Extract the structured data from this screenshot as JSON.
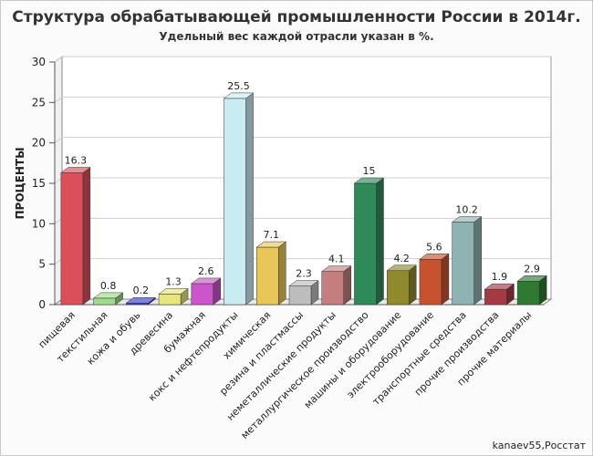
{
  "chart_data": {
    "type": "bar",
    "title": "Структура обрабатывающей промышленности России в 2014г.",
    "subtitle": "Удельный вес каждой отрасли указан в %.",
    "xlabel": "",
    "ylabel": "ПРОЦЕНТЫ",
    "ylim": [
      0,
      30
    ],
    "yticks": [
      0,
      5,
      10,
      15,
      20,
      25,
      30
    ],
    "grid": true,
    "credit": "kanaev55,Росстат",
    "categories": [
      "пищевая",
      "текстильная",
      "кожа и обувь",
      "древесина",
      "бумажная",
      "кокс и нефтепродукты",
      "химическая",
      "резина и пластмассы",
      "неметаллические продукты",
      "металлургическое производство",
      "машины и оборудование",
      "электрооборудование",
      "транспортные средства",
      "прочие производства",
      "прочие материалы"
    ],
    "values": [
      16.3,
      0.8,
      0.2,
      1.3,
      2.6,
      25.5,
      7.1,
      2.3,
      4.1,
      15,
      4.2,
      5.6,
      10.2,
      1.9,
      2.9
    ],
    "value_labels": [
      "16.3",
      "0.8",
      "0.2",
      "1.3",
      "2.6",
      "25.5",
      "7.1",
      "2.3",
      "4.1",
      "15",
      "4.2",
      "5.6",
      "10.2",
      "1.9",
      "2.9"
    ],
    "colors": [
      "#d9505a",
      "#9cdc8a",
      "#3a40cc",
      "#e6e67a",
      "#cc55cc",
      "#c9ecf2",
      "#e8c65a",
      "#bdbdbd",
      "#c47e7e",
      "#2f8a5a",
      "#8f8a2e",
      "#c9522e",
      "#8fb2b2",
      "#a33a44",
      "#2e7a32"
    ]
  }
}
